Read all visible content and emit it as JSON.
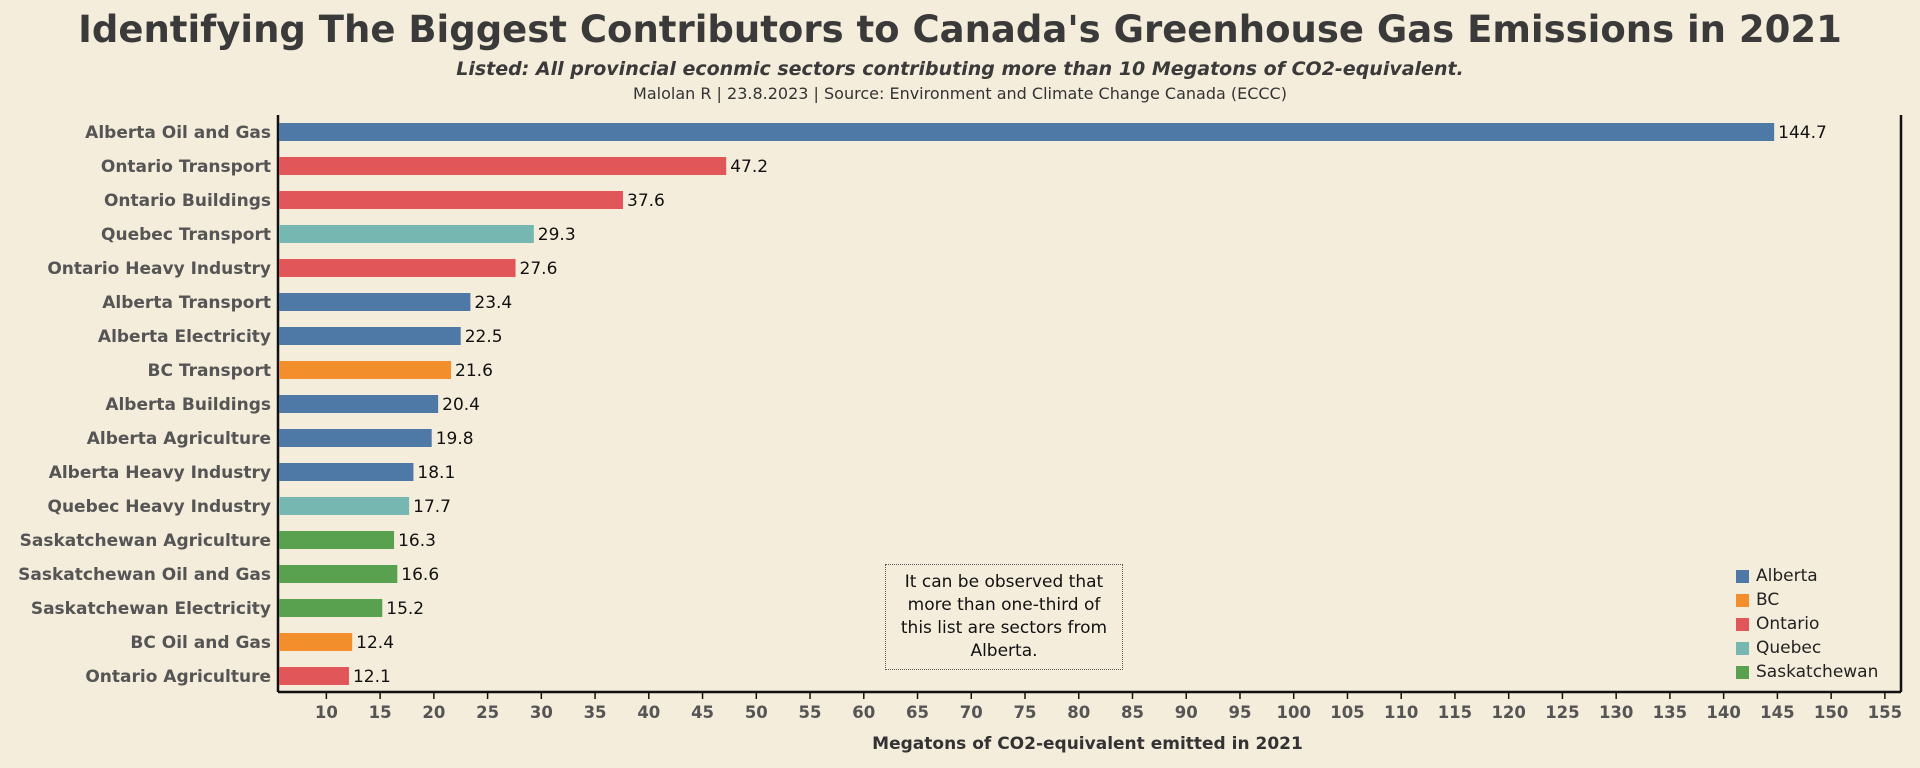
{
  "chart_data": {
    "type": "bar",
    "orientation": "horizontal",
    "title": "Identifying The Biggest Contributors to Canada's Greenhouse Gas Emissions in 2021",
    "subtitle": "Listed: All provincial econmic sectors contributing more than 10 Megatons of CO2-equivalent.",
    "credit": "Malolan R | 23.8.2023 | Source: Environment and Climate Change Canada (ECCC)",
    "xlabel": "Megatons of CO2-equivalent emitted in 2021",
    "ylabel": "",
    "xlim": [
      5.5,
      156.5
    ],
    "xticks": [
      10,
      15,
      20,
      25,
      30,
      35,
      40,
      45,
      50,
      55,
      60,
      65,
      70,
      75,
      80,
      85,
      90,
      95,
      100,
      105,
      110,
      115,
      120,
      125,
      130,
      135,
      140,
      145,
      150,
      155
    ],
    "grid": false,
    "legend_position": "bottom-right",
    "annotation": "It can be observed that more than one-third of this list are sectors from Alberta.",
    "province_colors": {
      "Alberta": "#4e79a7",
      "BC": "#f28e2b",
      "Ontario": "#e15759",
      "Quebec": "#76b7b2",
      "Saskatchewan": "#59a14f"
    },
    "legend": [
      "Alberta",
      "BC",
      "Ontario",
      "Quebec",
      "Saskatchewan"
    ],
    "bars": [
      {
        "label": "Alberta Oil and Gas",
        "value": 144.7,
        "value_text": "144.7",
        "province": "Alberta"
      },
      {
        "label": "Ontario Transport",
        "value": 47.2,
        "value_text": "47.2",
        "province": "Ontario"
      },
      {
        "label": "Ontario Buildings",
        "value": 37.6,
        "value_text": "37.6",
        "province": "Ontario"
      },
      {
        "label": "Quebec Transport",
        "value": 29.3,
        "value_text": "29.3",
        "province": "Quebec"
      },
      {
        "label": "Ontario Heavy Industry",
        "value": 27.6,
        "value_text": "27.6",
        "province": "Ontario"
      },
      {
        "label": "Alberta Transport",
        "value": 23.4,
        "value_text": "23.4",
        "province": "Alberta"
      },
      {
        "label": "Alberta Electricity",
        "value": 22.5,
        "value_text": "22.5",
        "province": "Alberta"
      },
      {
        "label": "BC Transport",
        "value": 21.6,
        "value_text": "21.6",
        "province": "BC"
      },
      {
        "label": "Alberta Buildings",
        "value": 20.4,
        "value_text": "20.4",
        "province": "Alberta"
      },
      {
        "label": "Alberta Agriculture",
        "value": 19.8,
        "value_text": "19.8",
        "province": "Alberta"
      },
      {
        "label": "Alberta Heavy Industry",
        "value": 18.1,
        "value_text": "18.1",
        "province": "Alberta"
      },
      {
        "label": "Quebec Heavy Industry",
        "value": 17.7,
        "value_text": "17.7",
        "province": "Quebec"
      },
      {
        "label": "Saskatchewan Agriculture",
        "value": 16.3,
        "value_text": "16.3",
        "province": "Saskatchewan"
      },
      {
        "label": "Saskatchewan Oil and Gas",
        "value": 16.6,
        "value_text": "16.6",
        "province": "Saskatchewan"
      },
      {
        "label": "Saskatchewan Electricity",
        "value": 15.2,
        "value_text": "15.2",
        "province": "Saskatchewan"
      },
      {
        "label": "BC Oil and Gas",
        "value": 12.4,
        "value_text": "12.4",
        "province": "BC"
      },
      {
        "label": "Ontario Agriculture",
        "value": 12.1,
        "value_text": "12.1",
        "province": "Ontario"
      }
    ]
  }
}
